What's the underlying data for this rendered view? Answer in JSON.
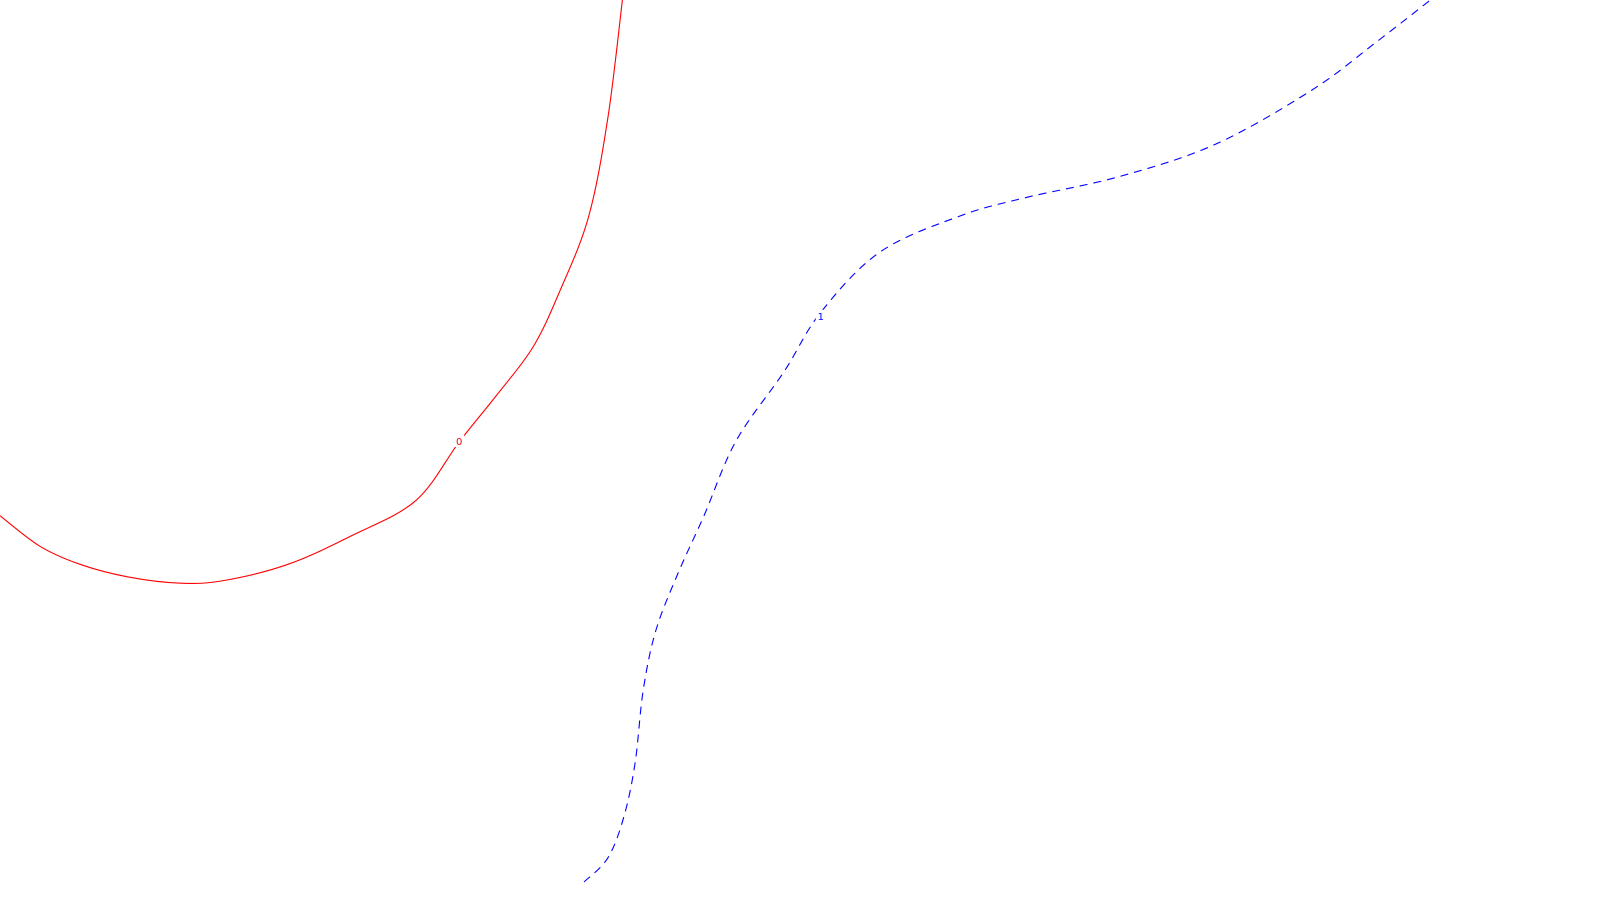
{
  "chart_data": {
    "type": "line",
    "title": "",
    "xlabel": "",
    "ylabel": "",
    "grid": false,
    "legend": "none",
    "series": [
      {
        "label": "0",
        "color": "#ff0000",
        "style": "solid",
        "points": [
          [
            0,
            0.573
          ],
          [
            0.025,
            0.607
          ],
          [
            0.05,
            0.627
          ],
          [
            0.08,
            0.641
          ],
          [
            0.113,
            0.648
          ],
          [
            0.14,
            0.645
          ],
          [
            0.18,
            0.627
          ],
          [
            0.22,
            0.595
          ],
          [
            0.26,
            0.556
          ],
          [
            0.287,
            0.491
          ],
          [
            0.31,
            0.44
          ],
          [
            0.333,
            0.386
          ],
          [
            0.35,
            0.323
          ],
          [
            0.368,
            0.24
          ],
          [
            0.38,
            0.13
          ],
          [
            0.389,
            0.0
          ]
        ]
      },
      {
        "label": "1",
        "color": "#0000ff",
        "style": "dashed",
        "points": [
          [
            0.365,
            0.98
          ],
          [
            0.38,
            0.953
          ],
          [
            0.39,
            0.907
          ],
          [
            0.397,
            0.847
          ],
          [
            0.402,
            0.767
          ],
          [
            0.41,
            0.7
          ],
          [
            0.424,
            0.636
          ],
          [
            0.44,
            0.573
          ],
          [
            0.46,
            0.49
          ],
          [
            0.49,
            0.413
          ],
          [
            0.513,
            0.347
          ],
          [
            0.55,
            0.28
          ],
          [
            0.6,
            0.24
          ],
          [
            0.64,
            0.22
          ],
          [
            0.7,
            0.196
          ],
          [
            0.76,
            0.16
          ],
          [
            0.82,
            0.1
          ],
          [
            0.86,
            0.047
          ],
          [
            0.894,
            0.0
          ]
        ]
      }
    ],
    "contour_labels": [
      {
        "text": "0",
        "x": 0.287,
        "y": 0.491,
        "color": "#ff0000"
      },
      {
        "text": "1",
        "x": 0.513,
        "y": 0.352,
        "color": "#0000ff"
      }
    ]
  }
}
